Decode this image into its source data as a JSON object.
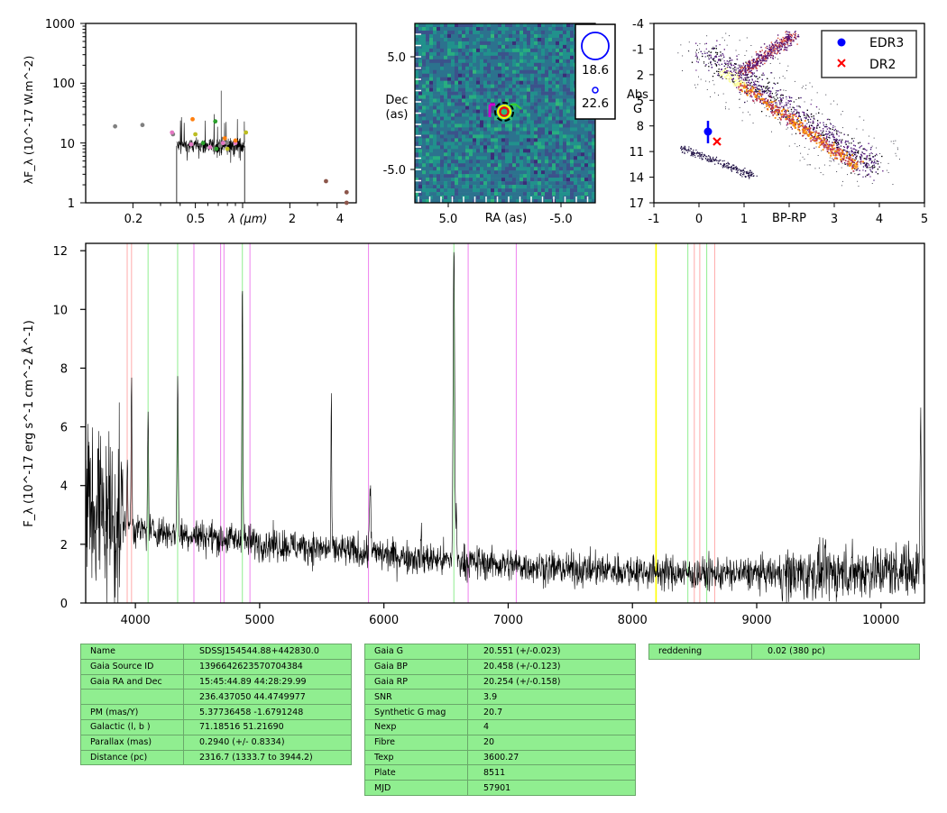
{
  "sed_panel": {
    "ylabel": "λF_λ (10^-17 W.m^-2)",
    "xlabel": "λ (μm)",
    "yticks": [
      "1",
      "10",
      "100",
      "1000"
    ],
    "xticks": [
      "0.2",
      "0.5",
      "1",
      "2",
      "4"
    ],
    "colors": {
      "grey": "#808080",
      "pink": "#e377c2",
      "orange": "#ff7f0e",
      "olive": "#bcbd22",
      "green": "#2ca02c",
      "brown": "#8c564b"
    }
  },
  "image_panel": {
    "ylabel_line1": "Dec",
    "ylabel_line2": "(as)",
    "xlabel": "RA (as)",
    "yticks": [
      "5.0",
      "-5.0"
    ],
    "xticks": [
      "5.0",
      "-5.0"
    ],
    "legend_mags": [
      "18.6",
      "22.6"
    ]
  },
  "hr_panel": {
    "ylabel_line1": "Abs",
    "ylabel_line2": "G",
    "xlabel": "BP-RP",
    "yticks": [
      "-4",
      "-1",
      "2",
      "5",
      "8",
      "11",
      "14",
      "17"
    ],
    "xticks": [
      "-1",
      "0",
      "1",
      "2",
      "3",
      "4",
      "5"
    ],
    "legend": [
      {
        "label": "EDR3",
        "marker": "dot",
        "color": "#0000ff"
      },
      {
        "label": "DR2",
        "marker": "x",
        "color": "#ff0000"
      }
    ]
  },
  "spectrum_panel": {
    "ylabel": "F_λ (10^-17 erg s^-1 cm^-2 Å^-1)",
    "xticks": [
      "4000",
      "5000",
      "6000",
      "7000",
      "8000",
      "9000",
      "10000"
    ],
    "yticks": [
      "0",
      "2",
      "4",
      "6",
      "8",
      "10",
      "12"
    ]
  },
  "chart_data": [
    {
      "type": "scatter",
      "title": "",
      "xlabel": "λ (μm)",
      "ylabel": "λF_λ (10^-17 W.m^-2)",
      "xscale": "log",
      "yscale": "log",
      "xlim": [
        0.1,
        5.3
      ],
      "ylim": [
        1,
        1000
      ],
      "series": [
        {
          "color": "#808080",
          "points": [
            [
              0.154,
              19
            ],
            [
              0.23,
              20
            ],
            [
              0.36,
              14
            ],
            [
              0.72,
              9
            ],
            [
              0.8,
              10
            ]
          ]
        },
        {
          "color": "#e377c2",
          "points": [
            [
              0.355,
              15
            ],
            [
              0.47,
              9.5
            ],
            [
              0.62,
              8.5
            ],
            [
              0.75,
              10
            ],
            [
              0.9,
              10
            ]
          ]
        },
        {
          "color": "#ff7f0e",
          "points": [
            [
              0.48,
              25
            ],
            [
              0.77,
              12
            ],
            [
              0.9,
              11
            ]
          ]
        },
        {
          "color": "#bcbd22",
          "points": [
            [
              0.5,
              14
            ],
            [
              0.8,
              8
            ],
            [
              1.05,
              15
            ]
          ]
        },
        {
          "color": "#2ca02c",
          "points": [
            [
              0.56,
              10
            ],
            [
              0.67,
              23
            ],
            [
              0.68,
              8
            ]
          ]
        },
        {
          "color": "#8c564b",
          "points": [
            [
              3.4,
              2.3
            ],
            [
              4.6,
              1.5
            ],
            [
              4.6,
              1.0
            ]
          ]
        }
      ]
    },
    {
      "type": "heatmap",
      "title": "",
      "xlabel": "RA (as)",
      "ylabel": "Dec (as)",
      "xlim": [
        7.5,
        -7.5
      ],
      "ylim": [
        -7.5,
        7.5
      ],
      "legend_magnitudes": [
        "18.6",
        "22.6"
      ]
    },
    {
      "type": "scatter",
      "title": "",
      "xlabel": "BP-RP",
      "ylabel": "Abs G",
      "xlim": [
        -1,
        5
      ],
      "ylim": [
        17,
        -4
      ],
      "series": [
        {
          "name": "EDR3",
          "points": [
            [
              0.2,
              8.6
            ]
          ],
          "yerr": 1.2
        },
        {
          "name": "DR2",
          "points": [
            [
              0.4,
              9.8
            ]
          ]
        }
      ]
    },
    {
      "type": "line",
      "title": "",
      "xlabel": "",
      "ylabel": "F_λ (10^-17 erg s^-1 cm^-2 Å^-1)",
      "xlim": [
        3600,
        10350
      ],
      "ylim": [
        0,
        12.25
      ],
      "x": [
        3600,
        3700,
        3800,
        3900,
        3968,
        4000,
        4102,
        4200,
        4340,
        4400,
        4500,
        4600,
        4700,
        4861,
        4900,
        5000,
        5200,
        5400,
        5577,
        5700,
        5890,
        6000,
        6200,
        6400,
        6563,
        6600,
        6800,
        7000,
        7200,
        7500,
        8000,
        8500,
        9000,
        9500,
        10000,
        10200,
        10320
      ],
      "y": [
        4.0,
        3.0,
        2.6,
        2.5,
        7.2,
        2.4,
        6.5,
        2.5,
        7.6,
        2.5,
        2.4,
        2.3,
        2.2,
        11.3,
        2.1,
        2.0,
        1.9,
        1.8,
        7.1,
        1.7,
        4.0,
        1.6,
        1.5,
        1.4,
        12.2,
        1.4,
        1.3,
        1.3,
        1.2,
        1.1,
        1.1,
        1.0,
        1.0,
        1.0,
        1.1,
        1.2,
        6.2
      ],
      "lines": [
        {
          "x": 3934,
          "color": "#ffaaaa"
        },
        {
          "x": 3969,
          "color": "#ffaaaa"
        },
        {
          "x": 4102,
          "color": "#90ee90"
        },
        {
          "x": 4340,
          "color": "#90ee90"
        },
        {
          "x": 4471,
          "color": "#ee82ee"
        },
        {
          "x": 4686,
          "color": "#ee82ee"
        },
        {
          "x": 4713,
          "color": "#ee82ee"
        },
        {
          "x": 4861,
          "color": "#90ee90"
        },
        {
          "x": 4922,
          "color": "#ee82ee"
        },
        {
          "x": 5876,
          "color": "#ee82ee"
        },
        {
          "x": 6563,
          "color": "#90ee90"
        },
        {
          "x": 6678,
          "color": "#ee82ee"
        },
        {
          "x": 7065,
          "color": "#ee82ee"
        },
        {
          "x": 8190,
          "color": "#ffff00"
        },
        {
          "x": 8446,
          "color": "#90ee90"
        },
        {
          "x": 8498,
          "color": "#ffaaaa"
        },
        {
          "x": 8542,
          "color": "#ffaaaa"
        },
        {
          "x": 8598,
          "color": "#90ee90"
        },
        {
          "x": 8662,
          "color": "#ffaaaa"
        }
      ]
    }
  ],
  "tables": {
    "left": [
      [
        "Name",
        "SDSSJ154544.88+442830.0"
      ],
      [
        "Gaia Source ID",
        "1396642623570704384"
      ],
      [
        "Gaia RA and Dec",
        "15:45:44.89    44:28:29.99"
      ],
      [
        "",
        "236.437050    44.4749977"
      ],
      [
        "PM (mas/Y)",
        "5.37736458    -1.6791248"
      ],
      [
        "Galactic (l, b )",
        "71.18516    51.21690"
      ],
      [
        "Parallax (mas)",
        "0.2940 (+/- 0.8334)"
      ],
      [
        "Distance (pc)",
        "2316.7 (1333.7 to 3944.2)"
      ]
    ],
    "middle": [
      [
        "Gaia G",
        "20.551 (+/-0.023)"
      ],
      [
        "Gaia BP",
        "20.458 (+/-0.123)"
      ],
      [
        "Gaia RP",
        "20.254 (+/-0.158)"
      ],
      [
        "SNR",
        "3.9"
      ],
      [
        "Synthetic G mag",
        "20.7"
      ],
      [
        "Nexp",
        "4"
      ],
      [
        "Fibre",
        "20"
      ],
      [
        "Texp",
        "3600.27"
      ],
      [
        "Plate",
        "8511"
      ],
      [
        "MJD",
        "57901"
      ]
    ],
    "right": [
      [
        "reddening",
        "0.02 (380 pc)"
      ]
    ]
  }
}
